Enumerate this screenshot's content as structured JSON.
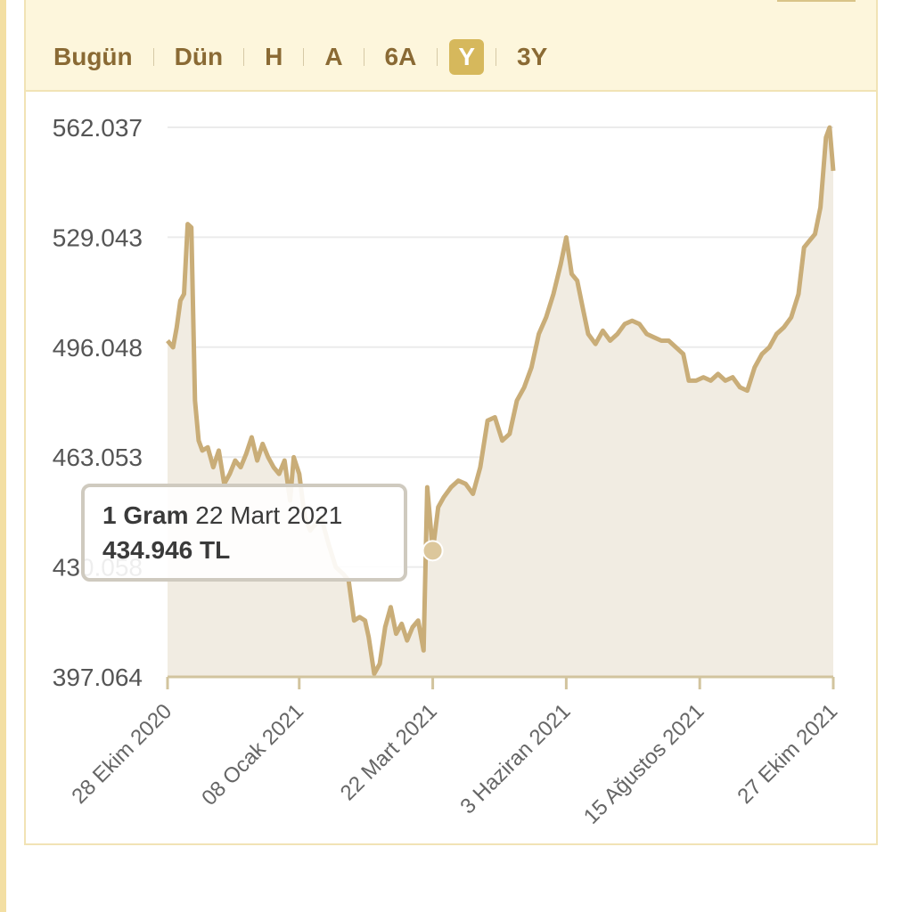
{
  "tabs": [
    {
      "label": "Bugün",
      "active": false
    },
    {
      "label": "Dün",
      "active": false
    },
    {
      "label": "H",
      "active": false
    },
    {
      "label": "A",
      "active": false
    },
    {
      "label": "6A",
      "active": false
    },
    {
      "label": "Y",
      "active": true
    },
    {
      "label": "3Y",
      "active": false
    }
  ],
  "tooltip": {
    "series": "1 Gram",
    "date": "22 Mart 2021",
    "value": "434.946 TL"
  },
  "colors": {
    "line": "#c9ad78",
    "area": "#f1ece2",
    "grid": "#ebebeb",
    "axis": "#d2c49e",
    "marker": "#dcc79c"
  },
  "chart_data": {
    "type": "area",
    "title": "",
    "xlabel": "",
    "ylabel": "",
    "y_ticks": [
      "562.037",
      "529.043",
      "496.048",
      "463.053",
      "430.058",
      "397.064"
    ],
    "ylim": [
      397.064,
      562.037
    ],
    "x_tick_labels": [
      "28 Ekim 2020",
      "08 Ocak 2021",
      "22 Mart 2021",
      "3 Haziran 2021",
      "15 Ağustos 2021",
      "27 Ekim 2021"
    ],
    "x_tick_dates": [
      "2020-10-28",
      "2021-01-08",
      "2021-03-22",
      "2021-06-03",
      "2021-08-15",
      "2021-10-27"
    ],
    "grid": true,
    "series": [
      {
        "name": "1 Gram",
        "points": [
          [
            "2020-10-28",
            498
          ],
          [
            "2020-10-31",
            496
          ],
          [
            "2020-11-02",
            502
          ],
          [
            "2020-11-04",
            510
          ],
          [
            "2020-11-06",
            512
          ],
          [
            "2020-11-08",
            533
          ],
          [
            "2020-11-10",
            532
          ],
          [
            "2020-11-12",
            480
          ],
          [
            "2020-11-14",
            468
          ],
          [
            "2020-11-16",
            465
          ],
          [
            "2020-11-19",
            466
          ],
          [
            "2020-11-22",
            460
          ],
          [
            "2020-11-25",
            465
          ],
          [
            "2020-11-28",
            455
          ],
          [
            "2020-12-01",
            458
          ],
          [
            "2020-12-04",
            462
          ],
          [
            "2020-12-07",
            460
          ],
          [
            "2020-12-10",
            464
          ],
          [
            "2020-12-13",
            469
          ],
          [
            "2020-12-16",
            462
          ],
          [
            "2020-12-19",
            467
          ],
          [
            "2020-12-22",
            463
          ],
          [
            "2020-12-25",
            460
          ],
          [
            "2020-12-28",
            458
          ],
          [
            "2020-12-31",
            462
          ],
          [
            "2021-01-03",
            450
          ],
          [
            "2021-01-05",
            463
          ],
          [
            "2021-01-08",
            458
          ],
          [
            "2021-01-11",
            445
          ],
          [
            "2021-01-14",
            441
          ],
          [
            "2021-01-17",
            443
          ],
          [
            "2021-01-20",
            445
          ],
          [
            "2021-01-24",
            437
          ],
          [
            "2021-01-28",
            430
          ],
          [
            "2021-02-01",
            428
          ],
          [
            "2021-02-04",
            426
          ],
          [
            "2021-02-07",
            414
          ],
          [
            "2021-02-10",
            415
          ],
          [
            "2021-02-13",
            414
          ],
          [
            "2021-02-15",
            409
          ],
          [
            "2021-02-18",
            398
          ],
          [
            "2021-02-21",
            401
          ],
          [
            "2021-02-24",
            412
          ],
          [
            "2021-02-27",
            418
          ],
          [
            "2021-03-02",
            410
          ],
          [
            "2021-03-05",
            413
          ],
          [
            "2021-03-08",
            408
          ],
          [
            "2021-03-11",
            412
          ],
          [
            "2021-03-14",
            414
          ],
          [
            "2021-03-17",
            405
          ],
          [
            "2021-03-19",
            454
          ],
          [
            "2021-03-22",
            434.946
          ],
          [
            "2021-03-25",
            448
          ],
          [
            "2021-03-28",
            451
          ],
          [
            "2021-04-01",
            454
          ],
          [
            "2021-04-05",
            456
          ],
          [
            "2021-04-09",
            455
          ],
          [
            "2021-04-13",
            452
          ],
          [
            "2021-04-17",
            460
          ],
          [
            "2021-04-21",
            474
          ],
          [
            "2021-04-25",
            475
          ],
          [
            "2021-04-29",
            468
          ],
          [
            "2021-05-03",
            470
          ],
          [
            "2021-05-07",
            480
          ],
          [
            "2021-05-11",
            484
          ],
          [
            "2021-05-15",
            490
          ],
          [
            "2021-05-19",
            500
          ],
          [
            "2021-05-23",
            505
          ],
          [
            "2021-05-27",
            512
          ],
          [
            "2021-05-31",
            521
          ],
          [
            "2021-06-03",
            529
          ],
          [
            "2021-06-06",
            518
          ],
          [
            "2021-06-09",
            516
          ],
          [
            "2021-06-12",
            508
          ],
          [
            "2021-06-15",
            500
          ],
          [
            "2021-06-19",
            497
          ],
          [
            "2021-06-23",
            501
          ],
          [
            "2021-06-27",
            498
          ],
          [
            "2021-07-01",
            500
          ],
          [
            "2021-07-05",
            503
          ],
          [
            "2021-07-09",
            504
          ],
          [
            "2021-07-13",
            503
          ],
          [
            "2021-07-17",
            500
          ],
          [
            "2021-07-21",
            499
          ],
          [
            "2021-07-25",
            498
          ],
          [
            "2021-07-29",
            498
          ],
          [
            "2021-08-02",
            496
          ],
          [
            "2021-08-06",
            494
          ],
          [
            "2021-08-09",
            486
          ],
          [
            "2021-08-13",
            486
          ],
          [
            "2021-08-17",
            487
          ],
          [
            "2021-08-21",
            486
          ],
          [
            "2021-08-25",
            488
          ],
          [
            "2021-08-29",
            486
          ],
          [
            "2021-09-02",
            487
          ],
          [
            "2021-09-06",
            484
          ],
          [
            "2021-09-10",
            483
          ],
          [
            "2021-09-14",
            490
          ],
          [
            "2021-09-18",
            494
          ],
          [
            "2021-09-22",
            496
          ],
          [
            "2021-09-26",
            500
          ],
          [
            "2021-09-30",
            502
          ],
          [
            "2021-10-04",
            505
          ],
          [
            "2021-10-08",
            512
          ],
          [
            "2021-10-11",
            526
          ],
          [
            "2021-10-14",
            528
          ],
          [
            "2021-10-17",
            530
          ],
          [
            "2021-10-20",
            538
          ],
          [
            "2021-10-23",
            559
          ],
          [
            "2021-10-25",
            562
          ],
          [
            "2021-10-27",
            549
          ]
        ]
      }
    ],
    "highlight": {
      "date": "2021-03-22",
      "value": 434.946
    }
  }
}
